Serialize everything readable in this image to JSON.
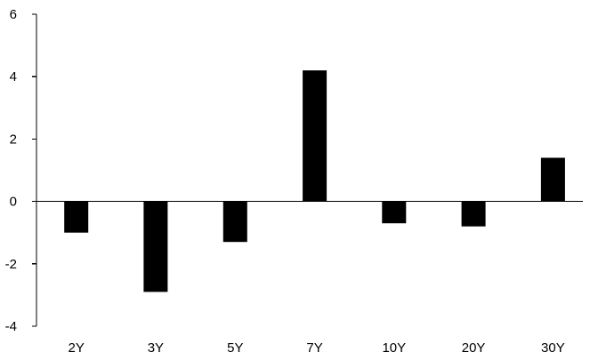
{
  "chart_data": {
    "type": "bar",
    "title": "",
    "xlabel": "",
    "ylabel": "",
    "categories": [
      "2Y",
      "3Y",
      "5Y",
      "7Y",
      "10Y",
      "20Y",
      "30Y"
    ],
    "values": [
      -1.0,
      -2.9,
      -1.3,
      4.2,
      -0.7,
      -0.8,
      1.4
    ],
    "ylim": [
      -4,
      6
    ],
    "yticks": [
      -4,
      -2,
      0,
      2,
      4,
      6
    ],
    "ytick_labels": [
      "-4",
      "-2",
      "0",
      "2",
      "4",
      "6"
    ],
    "grid": false,
    "legend": false,
    "bar_color": "#000000",
    "axis_color": "#000000"
  }
}
